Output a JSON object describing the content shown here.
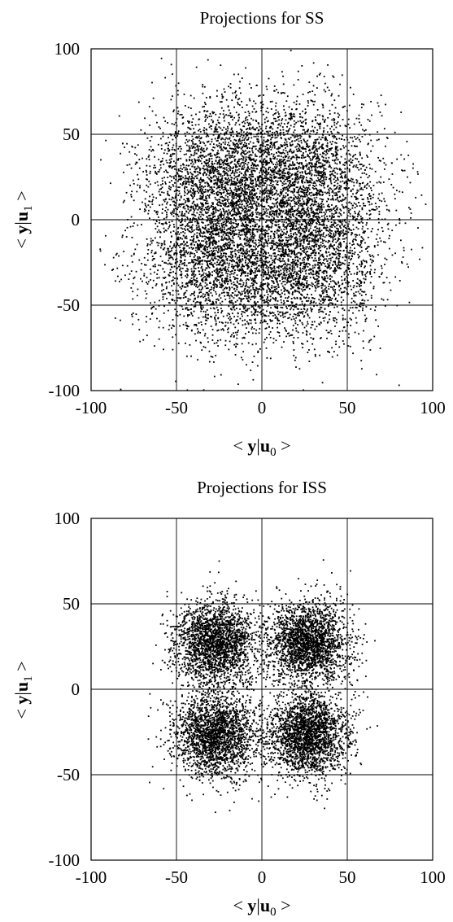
{
  "chart_data": [
    {
      "type": "scatter",
      "title": "Projections for SS",
      "xlabel": "< y|u0 >",
      "ylabel": "< y|u1 >",
      "xlabel_parts": {
        "open": "< ",
        "vec": "y",
        "sep": "|",
        "basis": "u",
        "sub": "0",
        "close": " >"
      },
      "ylabel_parts": {
        "open": "< ",
        "vec": "y",
        "sep": "|",
        "basis": "u",
        "sub": "1",
        "close": " >"
      },
      "xlim": [
        -100,
        100
      ],
      "ylim": [
        -100,
        100
      ],
      "xticks": [
        "-100",
        "-50",
        "0",
        "50",
        "100"
      ],
      "yticks": [
        "-100",
        "-50",
        "0",
        "50",
        "100"
      ],
      "grid": true,
      "point_color": "#000000",
      "approx_points": 9000,
      "distribution": {
        "clusters": [
          {
            "x": -25,
            "y": 25,
            "std": 23
          },
          {
            "x": 25,
            "y": 25,
            "std": 23
          },
          {
            "x": -25,
            "y": -25,
            "std": 23
          },
          {
            "x": 25,
            "y": -25,
            "std": 23
          }
        ]
      }
    },
    {
      "type": "scatter",
      "title": "Projections for ISS",
      "xlabel": "< y|u0 >",
      "ylabel": "< y|u1 >",
      "xlabel_parts": {
        "open": "< ",
        "vec": "y",
        "sep": "|",
        "basis": "u",
        "sub": "0",
        "close": " >"
      },
      "ylabel_parts": {
        "open": "< ",
        "vec": "y",
        "sep": "|",
        "basis": "u",
        "sub": "1",
        "close": " >"
      },
      "xlim": [
        -100,
        100
      ],
      "ylim": [
        -100,
        100
      ],
      "xticks": [
        "-100",
        "-50",
        "0",
        "50",
        "100"
      ],
      "yticks": [
        "-100",
        "-50",
        "0",
        "50",
        "100"
      ],
      "grid": true,
      "point_color": "#000000",
      "approx_points": 9000,
      "distribution": {
        "clusters": [
          {
            "x": -27,
            "y": 27,
            "std": 12
          },
          {
            "x": 27,
            "y": 27,
            "std": 12
          },
          {
            "x": -27,
            "y": -27,
            "std": 12
          },
          {
            "x": 27,
            "y": -27,
            "std": 12
          }
        ]
      }
    }
  ]
}
